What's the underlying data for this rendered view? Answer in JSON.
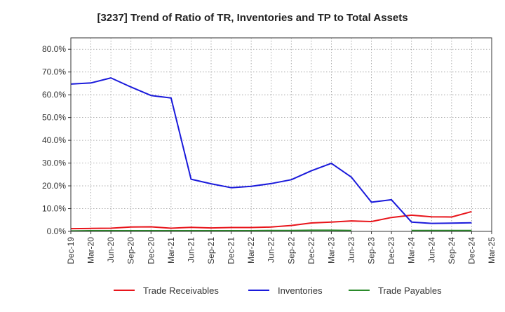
{
  "chart_data": {
    "type": "line",
    "title": "[3237]  Trend of Ratio of TR, Inventories and TP to Total Assets",
    "xlabel": "",
    "ylabel": "",
    "x_tick_labels": [
      "Dec-19",
      "Mar-20",
      "Jun-20",
      "Sep-20",
      "Dec-20",
      "Mar-21",
      "Jun-21",
      "Sep-21",
      "Dec-21",
      "Mar-22",
      "Jun-22",
      "Sep-22",
      "Dec-22",
      "Mar-23",
      "Jun-23",
      "Sep-23",
      "Dec-23",
      "Mar-24",
      "Jun-24",
      "Sep-24",
      "Dec-24",
      "Mar-25"
    ],
    "y_tick_labels": [
      "0.0%",
      "10.0%",
      "20.0%",
      "30.0%",
      "40.0%",
      "50.0%",
      "60.0%",
      "70.0%",
      "80.0%"
    ],
    "ylim": [
      0,
      85
    ],
    "grid": true,
    "legend_position": "bottom",
    "series": [
      {
        "name": "Trade Receivables",
        "color": "#e8151b",
        "values": [
          1.2,
          1.3,
          1.4,
          1.9,
          2.0,
          1.4,
          1.8,
          1.5,
          1.7,
          1.7,
          1.9,
          2.6,
          3.7,
          4.1,
          4.6,
          4.3,
          6.1,
          7.1,
          6.4,
          6.3,
          8.7,
          null
        ]
      },
      {
        "name": "Inventories",
        "color": "#1a1adb",
        "values": [
          64.7,
          65.2,
          67.4,
          63.4,
          59.7,
          58.6,
          22.9,
          20.9,
          19.2,
          19.8,
          21.0,
          22.7,
          26.6,
          29.9,
          23.8,
          12.8,
          13.9,
          4.1,
          3.5,
          3.6,
          3.8,
          null
        ]
      },
      {
        "name": "Trade Payables",
        "color": "#2a8a2a",
        "values": [
          0.2,
          0.3,
          0.3,
          0.3,
          0.3,
          0.3,
          0.3,
          0.3,
          0.3,
          0.3,
          0.4,
          0.4,
          0.5,
          0.5,
          0.4,
          null,
          null,
          0.4,
          0.4,
          0.4,
          0.4,
          null
        ]
      }
    ]
  }
}
